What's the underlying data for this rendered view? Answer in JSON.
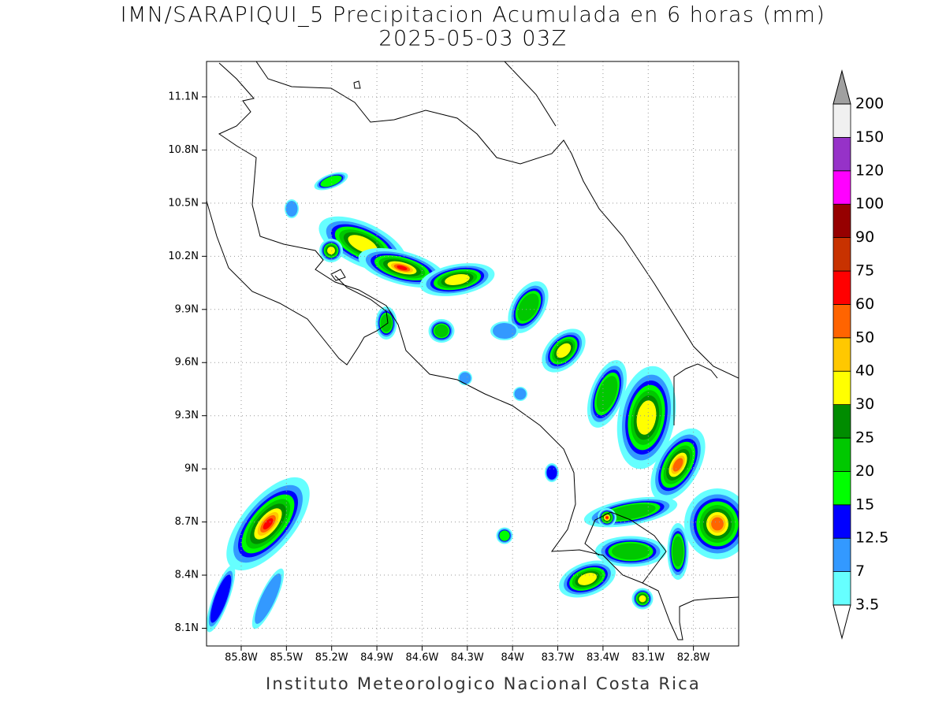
{
  "title": "IMN/SARAPIQUI_5 Precipitacion Acumulada en 6 horas (mm)",
  "subtitle": "2025-05-03 03Z",
  "footer": "Instituto Meteorologico Nacional Costa Rica",
  "map": {
    "lon_range": [
      -86.03,
      -82.5
    ],
    "lat_range": [
      8.0,
      11.3
    ],
    "grid": true,
    "lon_ticks": [
      {
        "value": -85.8,
        "label": "85.8W"
      },
      {
        "value": -85.5,
        "label": "85.5W"
      },
      {
        "value": -85.2,
        "label": "85.2W"
      },
      {
        "value": -84.9,
        "label": "84.9W"
      },
      {
        "value": -84.6,
        "label": "84.6W"
      },
      {
        "value": -84.3,
        "label": "84.3W"
      },
      {
        "value": -84.0,
        "label": "84W"
      },
      {
        "value": -83.7,
        "label": "83.7W"
      },
      {
        "value": -83.4,
        "label": "83.4W"
      },
      {
        "value": -83.1,
        "label": "83.1W"
      },
      {
        "value": -82.8,
        "label": "82.8W"
      }
    ],
    "lat_ticks": [
      {
        "value": 8.1,
        "label": "8.1N"
      },
      {
        "value": 8.4,
        "label": "8.4N"
      },
      {
        "value": 8.7,
        "label": "8.7N"
      },
      {
        "value": 9.0,
        "label": "9N"
      },
      {
        "value": 9.3,
        "label": "9.3N"
      },
      {
        "value": 9.6,
        "label": "9.6N"
      },
      {
        "value": 9.9,
        "label": "9.9N"
      },
      {
        "value": 10.2,
        "label": "10.2N"
      },
      {
        "value": 10.5,
        "label": "10.5N"
      },
      {
        "value": 10.8,
        "label": "10.8N"
      },
      {
        "value": 11.1,
        "label": "11.1N"
      }
    ]
  },
  "colorbar": {
    "levels": [
      3.5,
      7,
      12.5,
      15,
      20,
      25,
      30,
      40,
      50,
      60,
      75,
      90,
      100,
      120,
      150,
      200
    ],
    "colors": [
      "#66ffff",
      "#3399ff",
      "#0000ff",
      "#00ff00",
      "#00c800",
      "#008c00",
      "#ffff00",
      "#ffc800",
      "#ff6400",
      "#ff0000",
      "#c83200",
      "#960000",
      "#ff00ff",
      "#9632c8",
      "#f0f0f0"
    ],
    "under_color": "#ffffff",
    "over_color": "#a0a0a0"
  }
}
